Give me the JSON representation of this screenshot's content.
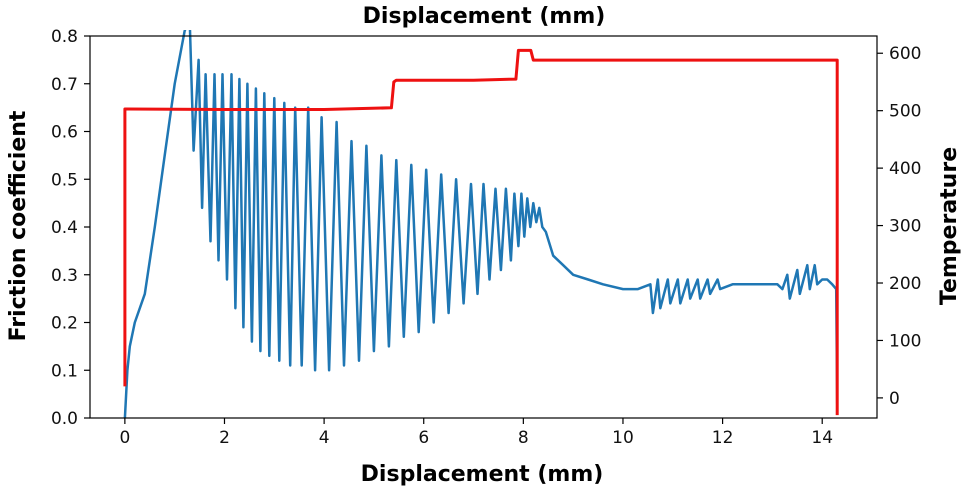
{
  "chart_data": {
    "type": "line",
    "title": "Displacement (mm)",
    "xlabel": "Displacement (mm)",
    "ylabel": "Friction coefficient",
    "y2label": "Temperature",
    "xlim": [
      -0.7,
      15.1
    ],
    "ylim": [
      0.0,
      0.8
    ],
    "y2lim": [
      -35,
      630
    ],
    "xticks": [
      0,
      2,
      4,
      6,
      8,
      10,
      12,
      14
    ],
    "yticks": [
      0.0,
      0.1,
      0.2,
      0.3,
      0.4,
      0.5,
      0.6,
      0.7,
      0.8
    ],
    "y2ticks": [
      0,
      100,
      200,
      300,
      400,
      500,
      600
    ],
    "grid": false,
    "series": [
      {
        "axis": "left",
        "color": "#1f77b4",
        "x": [
          0.0,
          0.05,
          0.1,
          0.2,
          0.4,
          0.6,
          0.8,
          1.0,
          1.2,
          1.3,
          1.38,
          1.48,
          1.55,
          1.62,
          1.72,
          1.8,
          1.88,
          1.96,
          2.05,
          2.14,
          2.22,
          2.3,
          2.38,
          2.46,
          2.55,
          2.63,
          2.72,
          2.8,
          2.9,
          3.0,
          3.1,
          3.2,
          3.32,
          3.42,
          3.55,
          3.68,
          3.82,
          3.95,
          4.1,
          4.25,
          4.4,
          4.55,
          4.7,
          4.85,
          5.0,
          5.15,
          5.3,
          5.45,
          5.6,
          5.75,
          5.9,
          6.05,
          6.2,
          6.35,
          6.5,
          6.65,
          6.8,
          6.95,
          7.08,
          7.2,
          7.32,
          7.44,
          7.55,
          7.65,
          7.75,
          7.82,
          7.9,
          7.96,
          8.02,
          8.08,
          8.14,
          8.2,
          8.26,
          8.32,
          8.38,
          8.45,
          8.6,
          8.8,
          9.0,
          9.3,
          9.6,
          10.0,
          10.3,
          10.55,
          10.6,
          10.7,
          10.75,
          10.9,
          10.95,
          11.1,
          11.15,
          11.3,
          11.35,
          11.5,
          11.55,
          11.7,
          11.75,
          11.9,
          11.95,
          12.2,
          12.5,
          12.8,
          13.1,
          13.2,
          13.3,
          13.35,
          13.5,
          13.55,
          13.7,
          13.75,
          13.85,
          13.9,
          14.0,
          14.1,
          14.2,
          14.28,
          14.3
        ],
        "values": [
          0.0,
          0.1,
          0.15,
          0.2,
          0.26,
          0.4,
          0.55,
          0.7,
          0.81,
          0.84,
          0.56,
          0.75,
          0.44,
          0.72,
          0.37,
          0.72,
          0.33,
          0.72,
          0.29,
          0.72,
          0.23,
          0.71,
          0.19,
          0.7,
          0.16,
          0.69,
          0.14,
          0.68,
          0.13,
          0.67,
          0.12,
          0.66,
          0.11,
          0.65,
          0.11,
          0.65,
          0.1,
          0.63,
          0.1,
          0.62,
          0.11,
          0.58,
          0.12,
          0.57,
          0.14,
          0.55,
          0.15,
          0.54,
          0.17,
          0.53,
          0.18,
          0.52,
          0.2,
          0.51,
          0.22,
          0.5,
          0.24,
          0.49,
          0.26,
          0.49,
          0.29,
          0.48,
          0.31,
          0.48,
          0.33,
          0.47,
          0.36,
          0.47,
          0.38,
          0.46,
          0.4,
          0.45,
          0.41,
          0.44,
          0.4,
          0.39,
          0.34,
          0.32,
          0.3,
          0.29,
          0.28,
          0.27,
          0.27,
          0.28,
          0.22,
          0.29,
          0.23,
          0.29,
          0.24,
          0.29,
          0.24,
          0.29,
          0.25,
          0.29,
          0.25,
          0.29,
          0.26,
          0.29,
          0.27,
          0.28,
          0.28,
          0.28,
          0.28,
          0.27,
          0.3,
          0.25,
          0.31,
          0.26,
          0.32,
          0.27,
          0.32,
          0.28,
          0.29,
          0.29,
          0.28,
          0.27,
          0.03
        ]
      },
      {
        "axis": "right",
        "color": "#ee1111",
        "x": [
          0.0,
          0.0,
          2.0,
          4.0,
          5.35,
          5.4,
          5.45,
          7.0,
          7.85,
          7.9,
          7.95,
          8.15,
          8.2,
          9.0,
          11.0,
          13.0,
          14.3,
          14.3
        ],
        "values": [
          20,
          503,
          502,
          502,
          505,
          550,
          553,
          553,
          555,
          605,
          605,
          605,
          588,
          588,
          588,
          588,
          588,
          -30
        ]
      }
    ]
  }
}
